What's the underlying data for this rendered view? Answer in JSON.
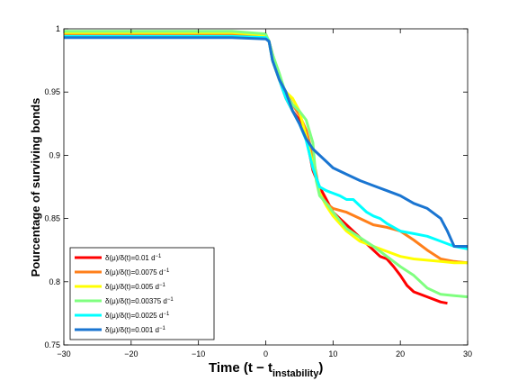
{
  "chart_data": {
    "type": "line",
    "title": "",
    "xlabel": "Time (t − t",
    "xlabel_sub": "instability",
    "xlabel_end": ")",
    "ylabel": "Pourcentage of surviving bonds",
    "xlim": [
      -30,
      30
    ],
    "ylim": [
      0.75,
      1
    ],
    "xticks": [
      -30,
      -20,
      -10,
      0,
      10,
      20,
      30
    ],
    "xtick_labels": [
      "−30",
      "−20",
      "−10",
      "0",
      "10",
      "20",
      "30"
    ],
    "yticks": [
      0.75,
      0.8,
      0.85,
      0.9,
      0.95,
      1
    ],
    "ytick_labels": [
      "0.75",
      "0.8",
      "0.85",
      "0.9",
      "0.95",
      "1"
    ],
    "grid": false,
    "legend_position": "bottom-left",
    "series": [
      {
        "name": "δ(μ)/δ(t)=0.01 d",
        "exponent": "−1",
        "color": "#ff0000",
        "points": [
          [
            -30,
            0.996
          ],
          [
            -5,
            0.996
          ],
          [
            0,
            0.995
          ],
          [
            0.5,
            0.99
          ],
          [
            1,
            0.98
          ],
          [
            2,
            0.96
          ],
          [
            3,
            0.945
          ],
          [
            4,
            0.935
          ],
          [
            5,
            0.928
          ],
          [
            6,
            0.915
          ],
          [
            7,
            0.888
          ],
          [
            8,
            0.875
          ],
          [
            9,
            0.865
          ],
          [
            10,
            0.855
          ],
          [
            12,
            0.845
          ],
          [
            14,
            0.835
          ],
          [
            16,
            0.825
          ],
          [
            17,
            0.82
          ],
          [
            18,
            0.818
          ],
          [
            19,
            0.812
          ],
          [
            20,
            0.805
          ],
          [
            21,
            0.797
          ],
          [
            22,
            0.792
          ],
          [
            24,
            0.788
          ],
          [
            26,
            0.784
          ],
          [
            27,
            0.783
          ]
        ]
      },
      {
        "name": "δ(μ)/δ(t)=0.0075 d",
        "exponent": "−1",
        "color": "#ff7f1a",
        "points": [
          [
            -30,
            0.995
          ],
          [
            -5,
            0.995
          ],
          [
            0,
            0.994
          ],
          [
            0.5,
            0.99
          ],
          [
            1,
            0.975
          ],
          [
            2,
            0.96
          ],
          [
            3,
            0.95
          ],
          [
            4,
            0.94
          ],
          [
            5,
            0.932
          ],
          [
            6,
            0.92
          ],
          [
            7,
            0.9
          ],
          [
            8,
            0.87
          ],
          [
            9,
            0.862
          ],
          [
            10,
            0.858
          ],
          [
            12,
            0.855
          ],
          [
            14,
            0.85
          ],
          [
            16,
            0.845
          ],
          [
            18,
            0.843
          ],
          [
            20,
            0.84
          ],
          [
            22,
            0.833
          ],
          [
            24,
            0.825
          ],
          [
            26,
            0.818
          ],
          [
            28,
            0.816
          ],
          [
            30,
            0.815
          ]
        ]
      },
      {
        "name": "δ(μ)/δ(t)=0.005 d",
        "exponent": "−1",
        "color": "#ffff00",
        "points": [
          [
            -30,
            0.997
          ],
          [
            -5,
            0.997
          ],
          [
            0,
            0.995
          ],
          [
            0.5,
            0.99
          ],
          [
            1,
            0.975
          ],
          [
            2,
            0.96
          ],
          [
            3,
            0.95
          ],
          [
            4,
            0.945
          ],
          [
            5,
            0.935
          ],
          [
            6,
            0.915
          ],
          [
            7,
            0.893
          ],
          [
            8,
            0.87
          ],
          [
            9,
            0.86
          ],
          [
            10,
            0.852
          ],
          [
            12,
            0.84
          ],
          [
            14,
            0.832
          ],
          [
            16,
            0.828
          ],
          [
            18,
            0.824
          ],
          [
            20,
            0.82
          ],
          [
            22,
            0.818
          ],
          [
            24,
            0.817
          ],
          [
            26,
            0.816
          ],
          [
            28,
            0.815
          ],
          [
            30,
            0.815
          ]
        ]
      },
      {
        "name": "δ(μ)/δ(t)=0.00375 d",
        "exponent": "−1",
        "color": "#7fff7f",
        "points": [
          [
            -30,
            0.998
          ],
          [
            -5,
            0.998
          ],
          [
            0,
            0.996
          ],
          [
            0.5,
            0.99
          ],
          [
            1,
            0.98
          ],
          [
            2,
            0.965
          ],
          [
            3,
            0.948
          ],
          [
            4,
            0.94
          ],
          [
            5,
            0.935
          ],
          [
            6,
            0.928
          ],
          [
            7,
            0.91
          ],
          [
            7.5,
            0.88
          ],
          [
            8,
            0.868
          ],
          [
            9,
            0.862
          ],
          [
            10,
            0.855
          ],
          [
            12,
            0.842
          ],
          [
            14,
            0.835
          ],
          [
            16,
            0.828
          ],
          [
            18,
            0.82
          ],
          [
            20,
            0.812
          ],
          [
            22,
            0.805
          ],
          [
            24,
            0.795
          ],
          [
            26,
            0.79
          ],
          [
            28,
            0.789
          ],
          [
            30,
            0.788
          ]
        ]
      },
      {
        "name": "δ(μ)/δ(t)=0.0025 d",
        "exponent": "−1",
        "color": "#00ffff",
        "points": [
          [
            -30,
            0.994
          ],
          [
            -5,
            0.994
          ],
          [
            0,
            0.993
          ],
          [
            0.5,
            0.99
          ],
          [
            1,
            0.975
          ],
          [
            2,
            0.96
          ],
          [
            3,
            0.945
          ],
          [
            4,
            0.935
          ],
          [
            5,
            0.925
          ],
          [
            6,
            0.912
          ],
          [
            7,
            0.89
          ],
          [
            8,
            0.875
          ],
          [
            9,
            0.872
          ],
          [
            10,
            0.87
          ],
          [
            11,
            0.868
          ],
          [
            12,
            0.865
          ],
          [
            13,
            0.865
          ],
          [
            14,
            0.86
          ],
          [
            15,
            0.855
          ],
          [
            16,
            0.852
          ],
          [
            17,
            0.85
          ],
          [
            18,
            0.846
          ],
          [
            20,
            0.84
          ],
          [
            22,
            0.838
          ],
          [
            24,
            0.836
          ],
          [
            26,
            0.832
          ],
          [
            28,
            0.828
          ],
          [
            30,
            0.826
          ]
        ]
      },
      {
        "name": "δ(μ)/δ(t)=0.001 d",
        "exponent": "−1",
        "color": "#1a75d1",
        "points": [
          [
            -30,
            0.993
          ],
          [
            -5,
            0.993
          ],
          [
            0,
            0.992
          ],
          [
            0.5,
            0.99
          ],
          [
            1,
            0.975
          ],
          [
            2,
            0.96
          ],
          [
            3,
            0.95
          ],
          [
            4,
            0.935
          ],
          [
            5,
            0.925
          ],
          [
            6,
            0.913
          ],
          [
            7,
            0.905
          ],
          [
            8,
            0.9
          ],
          [
            9,
            0.895
          ],
          [
            10,
            0.89
          ],
          [
            12,
            0.885
          ],
          [
            14,
            0.88
          ],
          [
            16,
            0.876
          ],
          [
            18,
            0.872
          ],
          [
            20,
            0.868
          ],
          [
            22,
            0.862
          ],
          [
            24,
            0.858
          ],
          [
            26,
            0.85
          ],
          [
            27,
            0.84
          ],
          [
            28,
            0.828
          ],
          [
            30,
            0.828
          ]
        ]
      }
    ]
  }
}
